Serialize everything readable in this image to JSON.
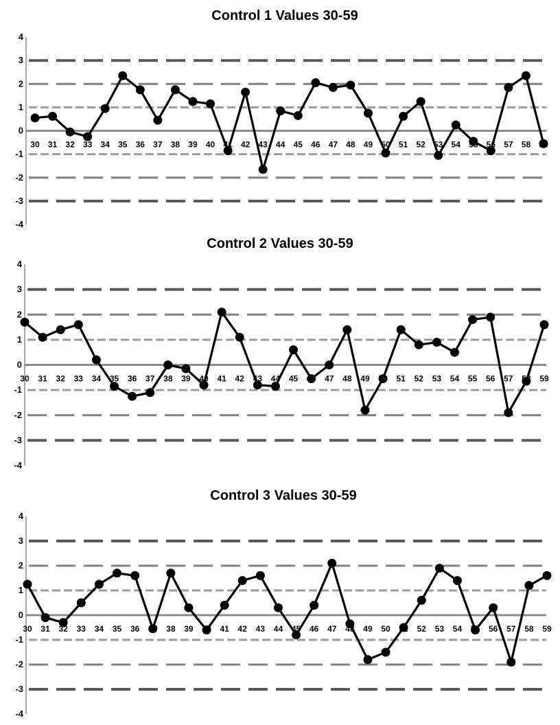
{
  "chart_data": [
    {
      "type": "line",
      "title": "Control 1 Values 30-59",
      "ylim": [
        -4,
        4
      ],
      "yticks": [
        4,
        3,
        2,
        1,
        0,
        -1,
        -2,
        -3,
        -4
      ],
      "x": [
        30,
        31,
        32,
        33,
        34,
        35,
        36,
        37,
        38,
        39,
        40,
        41,
        42,
        43,
        44,
        45,
        46,
        47,
        48,
        49,
        50,
        51,
        52,
        53,
        54,
        55,
        56,
        57,
        58,
        59
      ],
      "series": [
        {
          "values": [
            0.55,
            0.62,
            -0.05,
            -0.25,
            0.95,
            2.35,
            1.75,
            0.45,
            1.75,
            1.25,
            1.15,
            -0.85,
            1.65,
            -1.65,
            0.85,
            0.65,
            2.05,
            1.85,
            1.95,
            0.75,
            -0.95,
            0.62,
            1.25,
            -1.05,
            0.25,
            -0.45,
            -0.85,
            1.85,
            2.35,
            -0.55
          ]
        }
      ],
      "limit_lines": [
        3,
        2,
        1,
        -1,
        -2,
        -3
      ],
      "center_line": 0,
      "marker": "circle",
      "line_color": "#000000",
      "grid": false
    },
    {
      "type": "line",
      "title": "Control 2 Values 30-59",
      "ylim": [
        -4,
        4
      ],
      "yticks": [
        4,
        3,
        2,
        1,
        0,
        -1,
        -2,
        -3,
        -4
      ],
      "x": [
        30,
        31,
        32,
        33,
        34,
        35,
        36,
        37,
        38,
        39,
        40,
        41,
        42,
        43,
        44,
        45,
        46,
        47,
        48,
        49,
        50,
        51,
        52,
        53,
        54,
        55,
        56,
        57,
        58,
        59
      ],
      "series": [
        {
          "values": [
            1.7,
            1.1,
            1.4,
            1.6,
            0.2,
            -0.85,
            -1.25,
            -1.1,
            0.0,
            -0.15,
            -0.8,
            2.1,
            1.1,
            -0.8,
            -0.85,
            0.6,
            -0.55,
            0.0,
            1.4,
            -1.8,
            -0.55,
            1.4,
            0.8,
            0.9,
            0.5,
            1.8,
            1.9,
            -1.9,
            -0.65,
            1.6
          ]
        }
      ],
      "limit_lines": [
        3,
        2,
        1,
        -1,
        -2,
        -3
      ],
      "center_line": 0,
      "marker": "circle",
      "line_color": "#000000",
      "grid": false
    },
    {
      "type": "line",
      "title": "Control 3 Values 30-59",
      "ylim": [
        -4,
        4
      ],
      "yticks": [
        4,
        3,
        2,
        1,
        0,
        -1,
        -2,
        -3,
        -4
      ],
      "x": [
        30,
        31,
        32,
        33,
        34,
        35,
        36,
        37,
        38,
        39,
        40,
        41,
        42,
        43,
        44,
        45,
        46,
        47,
        48,
        49,
        50,
        51,
        52,
        53,
        54,
        55,
        56,
        57,
        58,
        59
      ],
      "series": [
        {
          "values": [
            1.25,
            -0.1,
            -0.3,
            0.5,
            1.25,
            1.7,
            1.6,
            -0.55,
            1.7,
            0.3,
            -0.6,
            0.4,
            1.4,
            1.6,
            0.3,
            -0.8,
            0.4,
            2.1,
            -0.35,
            -1.8,
            -1.5,
            -0.5,
            0.6,
            1.9,
            1.4,
            -0.6,
            0.3,
            -1.9,
            1.2,
            1.6
          ]
        }
      ],
      "limit_lines": [
        3,
        2,
        1,
        -1,
        -2,
        -3
      ],
      "center_line": 0,
      "marker": "circle",
      "line_color": "#000000",
      "grid": false
    }
  ]
}
